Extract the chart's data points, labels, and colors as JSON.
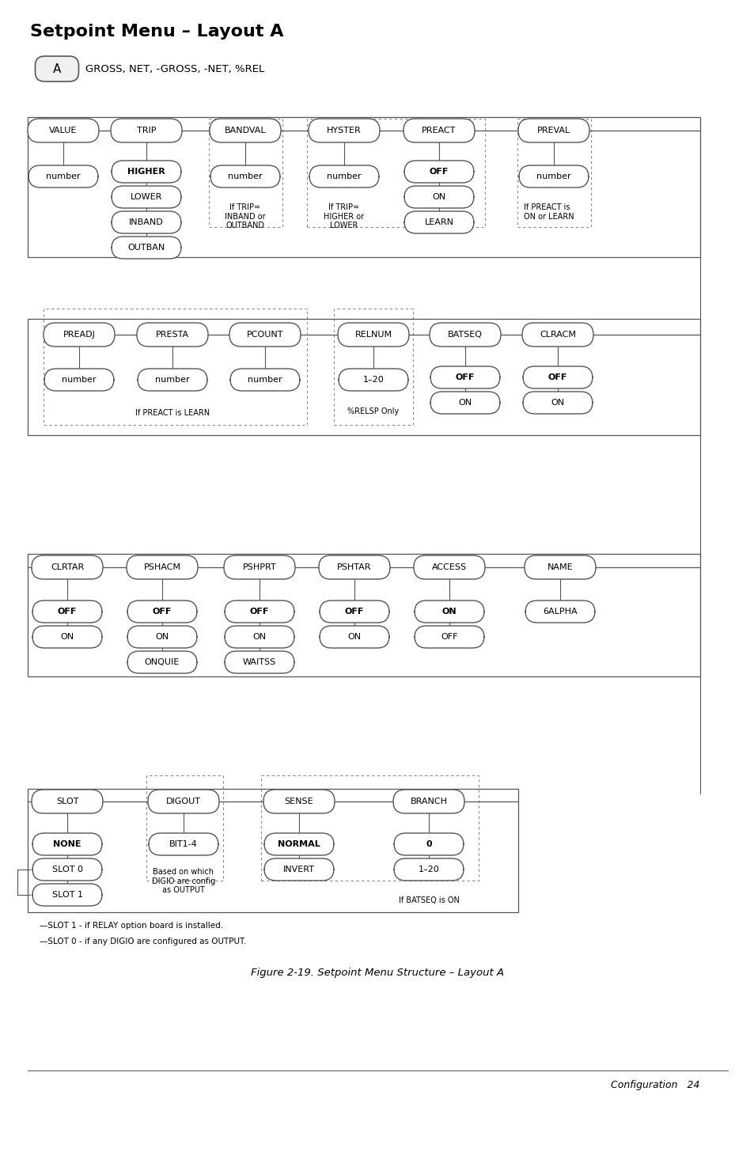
{
  "title": "Setpoint Menu – Layout A",
  "subtitle_box": "A",
  "subtitle_text": "GROSS, NET, -GROSS, -NET, %REL",
  "figure_caption": "Figure 2-19. Setpoint Menu Structure – Layout A",
  "footer_text": "Configuration   24",
  "bg_color": "#ffffff",
  "footnotes": [
    "—SLOT 1 - if RELAY option board is installed.",
    "—SLOT 0 - if any DIGIO are configured as OUTPUT."
  ]
}
